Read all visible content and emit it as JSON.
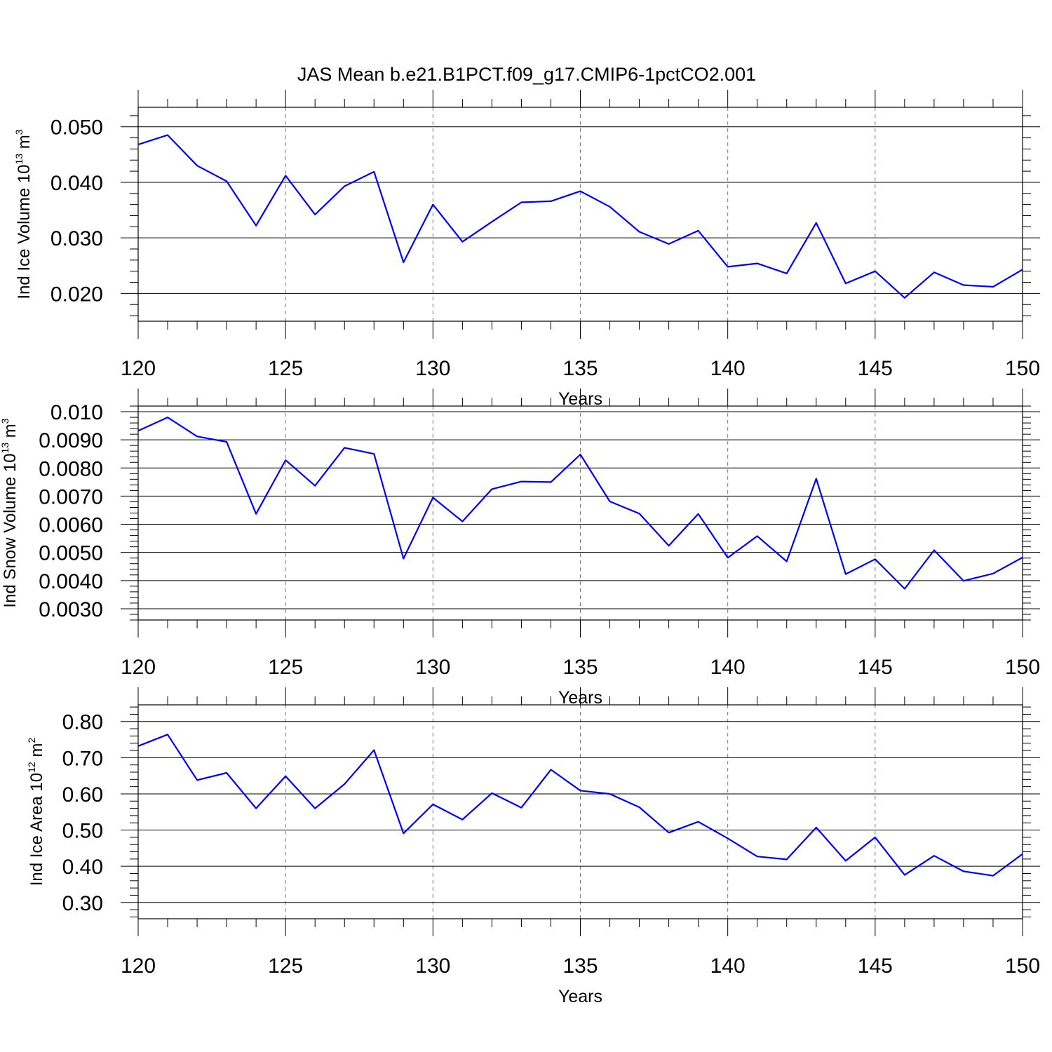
{
  "title": "JAS Mean b.e21.B1PCT.f09_g17.CMIP6-1pctCO2.001",
  "colors": {
    "line": "#0000ff",
    "grid": "#777777",
    "frame": "#000000"
  },
  "chart_data": [
    {
      "type": "line",
      "title": "JAS Mean b.e21.B1PCT.f09_g17.CMIP6-1pctCO2.001",
      "xlabel": "Years",
      "ylabel": {
        "text": "Ind Ice Volume 10",
        "sup": "13",
        "unit": " m",
        "unit_sup": "3"
      },
      "xlim": [
        120,
        150
      ],
      "ylim": [
        0.015,
        0.0535
      ],
      "grid": true,
      "x_ticks": [
        120,
        125,
        130,
        135,
        140,
        145,
        150
      ],
      "x_tick_labels": [
        "120",
        "125",
        "130",
        "135",
        "140",
        "145",
        "150"
      ],
      "y_ticks": [
        0.02,
        0.03,
        0.04,
        0.05
      ],
      "y_tick_labels": [
        "0.020",
        "0.030",
        "0.040",
        "0.050"
      ],
      "y_minor_step": 0.002,
      "series": [
        {
          "name": "Ind Ice Volume",
          "x": [
            120,
            121,
            122,
            123,
            124,
            125,
            126,
            127,
            128,
            129,
            130,
            131,
            132,
            133,
            134,
            135,
            136,
            137,
            138,
            139,
            140,
            141,
            142,
            143,
            144,
            145,
            146,
            147,
            148,
            149,
            150
          ],
          "values": [
            0.0468,
            0.0485,
            0.043,
            0.0402,
            0.0322,
            0.0412,
            0.0342,
            0.0393,
            0.0419,
            0.0256,
            0.036,
            0.0293,
            0.0329,
            0.0364,
            0.0366,
            0.0384,
            0.0356,
            0.0311,
            0.0289,
            0.0313,
            0.0248,
            0.0254,
            0.0236,
            0.0327,
            0.0218,
            0.024,
            0.0192,
            0.0238,
            0.0215,
            0.0212,
            0.0243
          ]
        }
      ]
    },
    {
      "type": "line",
      "xlabel": "Years",
      "ylabel": {
        "text": "Ind Snow Volume 10",
        "sup": "13",
        "unit": " m",
        "unit_sup": "3"
      },
      "xlim": [
        120,
        150
      ],
      "ylim": [
        0.0026,
        0.0102
      ],
      "grid": true,
      "x_ticks": [
        120,
        125,
        130,
        135,
        140,
        145,
        150
      ],
      "x_tick_labels": [
        "120",
        "125",
        "130",
        "135",
        "140",
        "145",
        "150"
      ],
      "y_ticks": [
        0.003,
        0.004,
        0.005,
        0.006,
        0.007,
        0.008,
        0.009,
        0.01
      ],
      "y_tick_labels": [
        "0.0030",
        "0.0040",
        "0.0050",
        "0.0060",
        "0.0070",
        "0.0080",
        "0.0090",
        "0.010"
      ],
      "y_minor_step": 0.0002,
      "series": [
        {
          "name": "Ind Snow Volume",
          "x": [
            120,
            121,
            122,
            123,
            124,
            125,
            126,
            127,
            128,
            129,
            130,
            131,
            132,
            133,
            134,
            135,
            136,
            137,
            138,
            139,
            140,
            141,
            142,
            143,
            144,
            145,
            146,
            147,
            148,
            149,
            150
          ],
          "values": [
            0.00932,
            0.0098,
            0.00912,
            0.00893,
            0.00637,
            0.00828,
            0.00737,
            0.00872,
            0.0085,
            0.00478,
            0.00695,
            0.0061,
            0.00725,
            0.00752,
            0.0075,
            0.00848,
            0.00681,
            0.00638,
            0.00524,
            0.00637,
            0.00481,
            0.00558,
            0.00468,
            0.00762,
            0.00423,
            0.00476,
            0.00371,
            0.00508,
            0.00399,
            0.00425,
            0.00482
          ]
        }
      ]
    },
    {
      "type": "line",
      "xlabel": "Years",
      "ylabel": {
        "text": "Ind Ice Area 10",
        "sup": "12",
        "unit": " m",
        "unit_sup": "2"
      },
      "xlim": [
        120,
        150
      ],
      "ylim": [
        0.255,
        0.846
      ],
      "grid": true,
      "x_ticks": [
        120,
        125,
        130,
        135,
        140,
        145,
        150
      ],
      "x_tick_labels": [
        "120",
        "125",
        "130",
        "135",
        "140",
        "145",
        "150"
      ],
      "y_ticks": [
        0.3,
        0.4,
        0.5,
        0.6,
        0.7,
        0.8
      ],
      "y_tick_labels": [
        "0.30",
        "0.40",
        "0.50",
        "0.60",
        "0.70",
        "0.80"
      ],
      "y_minor_step": 0.02,
      "series": [
        {
          "name": "Ind Ice Area",
          "x": [
            120,
            121,
            122,
            123,
            124,
            125,
            126,
            127,
            128,
            129,
            130,
            131,
            132,
            133,
            134,
            135,
            136,
            137,
            138,
            139,
            140,
            141,
            142,
            143,
            144,
            145,
            146,
            147,
            148,
            149,
            150
          ],
          "values": [
            0.732,
            0.764,
            0.638,
            0.658,
            0.56,
            0.649,
            0.56,
            0.627,
            0.721,
            0.491,
            0.571,
            0.529,
            0.602,
            0.562,
            0.667,
            0.609,
            0.6,
            0.563,
            0.493,
            0.523,
            0.477,
            0.427,
            0.419,
            0.507,
            0.415,
            0.48,
            0.376,
            0.429,
            0.386,
            0.374,
            0.434
          ]
        }
      ]
    }
  ]
}
